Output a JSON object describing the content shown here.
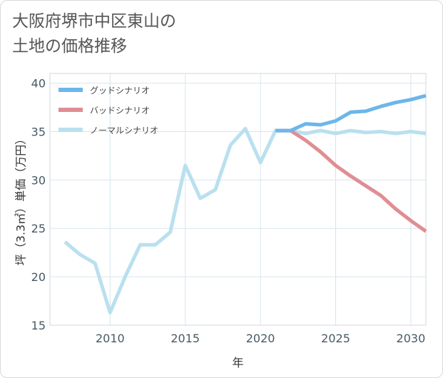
{
  "chart_data": {
    "type": "line",
    "title": "大阪府堺市中区東山の\n土地の価格推移",
    "xlabel": "年",
    "ylabel": "坪（3.3㎡）単価（万円）",
    "xlim": [
      2006.0,
      2031.0
    ],
    "ylim": [
      15,
      41
    ],
    "x_ticks": [
      2010,
      2015,
      2020,
      2025,
      2030
    ],
    "y_ticks": [
      15,
      20,
      25,
      30,
      35,
      40
    ],
    "grid": true,
    "legend_position": "top-left",
    "series": [
      {
        "name": "グッドシナリオ",
        "color": "#6cb6ea",
        "x": [
          2021,
          2022,
          2023,
          2024,
          2025,
          2026,
          2027,
          2028,
          2029,
          2030,
          2031
        ],
        "y": [
          35.1,
          35.1,
          35.8,
          35.7,
          36.1,
          37.0,
          37.1,
          37.6,
          38.0,
          38.3,
          38.7
        ]
      },
      {
        "name": "バッドシナリオ",
        "color": "#e08e93",
        "x": [
          2021,
          2022,
          2023,
          2024,
          2025,
          2026,
          2027,
          2028,
          2029,
          2030,
          2031
        ],
        "y": [
          35.1,
          35.1,
          34.1,
          32.9,
          31.5,
          30.4,
          29.4,
          28.4,
          27.0,
          25.8,
          24.7
        ]
      },
      {
        "name": "ノーマルシナリオ",
        "color": "#b9e0ef",
        "x": [
          2007,
          2008,
          2009,
          2010,
          2011,
          2012,
          2013,
          2014,
          2015,
          2016,
          2017,
          2018,
          2019,
          2020,
          2021,
          2022,
          2023,
          2024,
          2025,
          2026,
          2027,
          2028,
          2029,
          2030,
          2031
        ],
        "y": [
          23.6,
          22.3,
          21.4,
          16.3,
          20.0,
          23.3,
          23.3,
          24.6,
          31.5,
          28.1,
          29.0,
          33.6,
          35.3,
          31.8,
          35.1,
          35.1,
          34.8,
          35.1,
          34.8,
          35.1,
          34.9,
          35.0,
          34.8,
          35.0,
          34.8
        ]
      }
    ]
  }
}
